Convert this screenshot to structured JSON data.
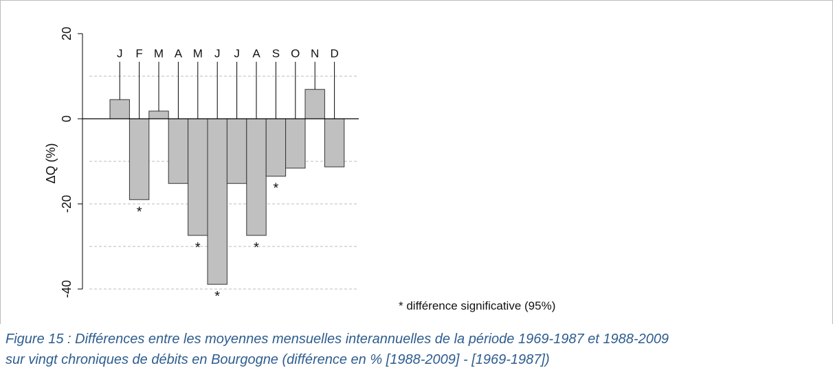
{
  "chart_data": {
    "type": "bar",
    "y_label": "ΔQ (%)",
    "categories": [
      "J",
      "F",
      "M",
      "A",
      "M",
      "J",
      "J",
      "A",
      "S",
      "O",
      "N",
      "D"
    ],
    "values": [
      4.5,
      -19,
      1.8,
      -15.2,
      -27.4,
      -38.9,
      -15.2,
      -27.4,
      -13.5,
      -11.6,
      6.9,
      -11.3
    ],
    "significant": [
      false,
      true,
      false,
      false,
      true,
      true,
      false,
      true,
      true,
      false,
      false,
      false
    ],
    "significance_marker": "*",
    "color": "#c0c0c0",
    "ylim": [
      -40,
      20
    ],
    "yticks": [
      20,
      0,
      -20,
      -40
    ],
    "ygrid": [
      10,
      -10,
      -20,
      -30,
      -40
    ],
    "zero_line": true,
    "note": "* différence significative (95%)",
    "caption": [
      "Figure 15 : Différences entre les moyennes mensuelles interannuelles de la période 1969-1987 et 1988-2009",
      "sur vingt chroniques de débits en Bourgogne (différence en % [1988-2009] - [1969-1987])"
    ]
  }
}
